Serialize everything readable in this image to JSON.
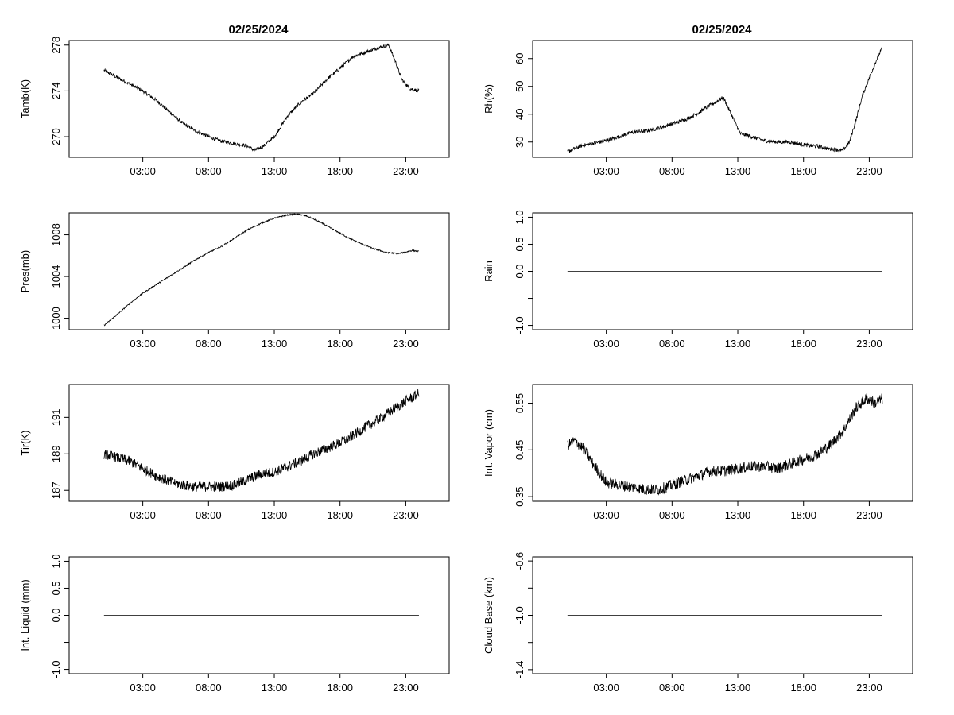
{
  "figure": {
    "left_date": "02/25/2024",
    "right_date": "02/25/2024"
  },
  "colors": {
    "line": "#000000",
    "background": "#ffffff"
  },
  "chart_data": [
    {
      "id": "tamb",
      "type": "line",
      "title": "02/25/2024",
      "xlabel": "",
      "ylabel": "Tamb(K)",
      "xticks": [
        "03:00",
        "08:00",
        "13:00",
        "18:00",
        "23:00"
      ],
      "xtick_hours": [
        3,
        8,
        13,
        18,
        23
      ],
      "xlim": [
        -2.6,
        26.3
      ],
      "ylim": [
        268.2,
        278.4
      ],
      "yticks": [
        270,
        274,
        278
      ],
      "ytick_labels": [
        "270",
        "274",
        "278"
      ],
      "noise": 0.15,
      "points": [
        [
          0.05,
          275.8
        ],
        [
          1,
          275.2
        ],
        [
          2,
          274.6
        ],
        [
          3,
          274.0
        ],
        [
          4,
          273.2
        ],
        [
          5,
          272.2
        ],
        [
          6,
          271.2
        ],
        [
          7,
          270.5
        ],
        [
          8,
          270.0
        ],
        [
          9,
          269.6
        ],
        [
          10,
          269.4
        ],
        [
          10.9,
          269.2
        ],
        [
          11.5,
          268.8
        ],
        [
          12.2,
          269.2
        ],
        [
          13,
          270.0
        ],
        [
          14,
          271.8
        ],
        [
          15,
          273.0
        ],
        [
          16,
          273.8
        ],
        [
          17,
          275.0
        ],
        [
          18,
          276.0
        ],
        [
          19,
          277.0
        ],
        [
          20,
          277.4
        ],
        [
          21,
          277.8
        ],
        [
          21.7,
          278.0
        ],
        [
          22.2,
          276.6
        ],
        [
          22.7,
          275.0
        ],
        [
          23.3,
          274.2
        ],
        [
          24,
          274.0
        ]
      ]
    },
    {
      "id": "rh",
      "type": "line",
      "title": "02/25/2024",
      "xlabel": "",
      "ylabel": "Rh(%)",
      "xticks": [
        "03:00",
        "08:00",
        "13:00",
        "18:00",
        "23:00"
      ],
      "xtick_hours": [
        3,
        8,
        13,
        18,
        23
      ],
      "xlim": [
        -2.6,
        26.3
      ],
      "ylim": [
        24.5,
        66.5
      ],
      "yticks": [
        30,
        40,
        50,
        60
      ],
      "ytick_labels": [
        "30",
        "40",
        "50",
        "60"
      ],
      "noise": 0.7,
      "points": [
        [
          0.05,
          26.5
        ],
        [
          1,
          28.5
        ],
        [
          2,
          29.5
        ],
        [
          3,
          30.5
        ],
        [
          4,
          32.0
        ],
        [
          5,
          33.5
        ],
        [
          6,
          34.0
        ],
        [
          7,
          35.0
        ],
        [
          8,
          36.5
        ],
        [
          9,
          38.0
        ],
        [
          10,
          40.5
        ],
        [
          11,
          43.5
        ],
        [
          11.9,
          46.0
        ],
        [
          12.7,
          38.0
        ],
        [
          13.2,
          33.0
        ],
        [
          14,
          32.0
        ],
        [
          15,
          30.5
        ],
        [
          16,
          30.0
        ],
        [
          17,
          30.0
        ],
        [
          18,
          29.0
        ],
        [
          19,
          28.5
        ],
        [
          20,
          27.5
        ],
        [
          21,
          27.0
        ],
        [
          21.5,
          30.0
        ],
        [
          22,
          38.0
        ],
        [
          22.5,
          47.0
        ],
        [
          23,
          53.0
        ],
        [
          23.5,
          59.0
        ],
        [
          24,
          64.0
        ]
      ]
    },
    {
      "id": "pres",
      "type": "line",
      "title": "",
      "xlabel": "",
      "ylabel": "Pres(mb)",
      "xticks": [
        "03:00",
        "08:00",
        "13:00",
        "18:00",
        "23:00"
      ],
      "xtick_hours": [
        3,
        8,
        13,
        18,
        23
      ],
      "xlim": [
        -2.6,
        26.3
      ],
      "ylim": [
        998.9,
        1010.1
      ],
      "yticks": [
        1000,
        1004,
        1008
      ],
      "ytick_labels": [
        "1000",
        "1004",
        "1008"
      ],
      "noise": 0.06,
      "points": [
        [
          0.05,
          999.3
        ],
        [
          1,
          1000.3
        ],
        [
          2,
          1001.4
        ],
        [
          3,
          1002.4
        ],
        [
          4,
          1003.2
        ],
        [
          5,
          1004.0
        ],
        [
          6,
          1004.8
        ],
        [
          7,
          1005.6
        ],
        [
          8,
          1006.3
        ],
        [
          9,
          1006.9
        ],
        [
          10,
          1007.7
        ],
        [
          11,
          1008.5
        ],
        [
          12,
          1009.1
        ],
        [
          13,
          1009.6
        ],
        [
          14,
          1009.9
        ],
        [
          14.7,
          1010.0
        ],
        [
          15.5,
          1009.8
        ],
        [
          16.5,
          1009.2
        ],
        [
          17.5,
          1008.5
        ],
        [
          18.5,
          1007.8
        ],
        [
          19.5,
          1007.2
        ],
        [
          20.5,
          1006.7
        ],
        [
          21.5,
          1006.3
        ],
        [
          22.5,
          1006.2
        ],
        [
          23.5,
          1006.5
        ],
        [
          24,
          1006.4
        ]
      ]
    },
    {
      "id": "rain",
      "type": "line",
      "title": "",
      "xlabel": "",
      "ylabel": "Rain",
      "xticks": [
        "03:00",
        "08:00",
        "13:00",
        "18:00",
        "23:00"
      ],
      "xtick_hours": [
        3,
        8,
        13,
        18,
        23
      ],
      "xlim": [
        -2.6,
        26.3
      ],
      "ylim": [
        -1.08,
        1.08
      ],
      "yticks": [
        -1.0,
        -0.5,
        0.0,
        0.5,
        1.0
      ],
      "ytick_labels": [
        "-1.0",
        "",
        "0.0",
        "0.5",
        "1.0"
      ],
      "noise": 0,
      "points": [
        [
          0.05,
          0
        ],
        [
          24,
          0
        ]
      ]
    },
    {
      "id": "tir",
      "type": "line",
      "title": "",
      "xlabel": "",
      "ylabel": "Tir(K)",
      "xticks": [
        "03:00",
        "08:00",
        "13:00",
        "18:00",
        "23:00"
      ],
      "xtick_hours": [
        3,
        8,
        13,
        18,
        23
      ],
      "xlim": [
        -2.6,
        26.3
      ],
      "ylim": [
        186.4,
        192.8
      ],
      "yticks": [
        187,
        189,
        191
      ],
      "ytick_labels": [
        "187",
        "189",
        "191"
      ],
      "noise": 0.28,
      "points": [
        [
          0.05,
          189.0
        ],
        [
          1,
          188.8
        ],
        [
          2,
          188.6
        ],
        [
          3,
          188.2
        ],
        [
          4,
          187.8
        ],
        [
          5,
          187.5
        ],
        [
          6,
          187.3
        ],
        [
          7,
          187.2
        ],
        [
          8,
          187.2
        ],
        [
          9,
          187.2
        ],
        [
          10,
          187.3
        ],
        [
          11,
          187.6
        ],
        [
          12,
          187.9
        ],
        [
          13,
          188.0
        ],
        [
          14,
          188.3
        ],
        [
          15,
          188.6
        ],
        [
          16,
          189.0
        ],
        [
          17,
          189.3
        ],
        [
          18,
          189.6
        ],
        [
          19,
          190.0
        ],
        [
          20,
          190.5
        ],
        [
          21,
          190.9
        ],
        [
          22,
          191.4
        ],
        [
          23,
          191.9
        ],
        [
          24,
          192.3
        ]
      ]
    },
    {
      "id": "vapor",
      "type": "line",
      "title": "",
      "xlabel": "",
      "ylabel": "Int. Vapor (cm)",
      "xticks": [
        "03:00",
        "08:00",
        "13:00",
        "18:00",
        "23:00"
      ],
      "xtick_hours": [
        3,
        8,
        13,
        18,
        23
      ],
      "xlim": [
        -2.6,
        26.3
      ],
      "ylim": [
        0.34,
        0.59
      ],
      "yticks": [
        0.35,
        0.45,
        0.55
      ],
      "ytick_labels": [
        "0.35",
        "0.45",
        "0.55"
      ],
      "noise": 0.012,
      "points": [
        [
          0.05,
          0.46
        ],
        [
          0.6,
          0.47
        ],
        [
          1.2,
          0.455
        ],
        [
          2,
          0.42
        ],
        [
          3,
          0.38
        ],
        [
          4,
          0.375
        ],
        [
          5,
          0.37
        ],
        [
          6,
          0.365
        ],
        [
          7,
          0.365
        ],
        [
          8,
          0.375
        ],
        [
          9,
          0.385
        ],
        [
          10,
          0.395
        ],
        [
          11,
          0.405
        ],
        [
          12,
          0.405
        ],
        [
          13,
          0.41
        ],
        [
          14,
          0.415
        ],
        [
          15,
          0.415
        ],
        [
          16,
          0.41
        ],
        [
          17,
          0.42
        ],
        [
          18,
          0.43
        ],
        [
          19,
          0.44
        ],
        [
          20,
          0.46
        ],
        [
          21,
          0.49
        ],
        [
          22,
          0.54
        ],
        [
          22.8,
          0.56
        ],
        [
          23.5,
          0.55
        ],
        [
          24,
          0.56
        ]
      ]
    },
    {
      "id": "liquid",
      "type": "line",
      "title": "",
      "xlabel": "",
      "ylabel": "Int. Liquid (mm)",
      "xticks": [
        "03:00",
        "08:00",
        "13:00",
        "18:00",
        "23:00"
      ],
      "xtick_hours": [
        3,
        8,
        13,
        18,
        23
      ],
      "xlim": [
        -2.6,
        26.3
      ],
      "ylim": [
        -1.08,
        1.08
      ],
      "yticks": [
        -1.0,
        -0.5,
        0.0,
        0.5,
        1.0
      ],
      "ytick_labels": [
        "-1.0",
        "",
        "0.0",
        "0.5",
        "1.0"
      ],
      "noise": 0,
      "points": [
        [
          0.05,
          0
        ],
        [
          24,
          0
        ]
      ]
    },
    {
      "id": "cloudbase",
      "type": "line",
      "title": "",
      "xlabel": "",
      "ylabel": "Cloud Base (km)",
      "xticks": [
        "03:00",
        "08:00",
        "13:00",
        "18:00",
        "23:00"
      ],
      "xtick_hours": [
        3,
        8,
        13,
        18,
        23
      ],
      "xlim": [
        -2.6,
        26.3
      ],
      "ylim": [
        -1.43,
        -0.57
      ],
      "yticks": [
        -1.4,
        -1.2,
        -1.0,
        -0.8,
        -0.6
      ],
      "ytick_labels": [
        "-1.4",
        "",
        "-1.0",
        "",
        "-0.6"
      ],
      "noise": 0,
      "points": [
        [
          0.05,
          -1.0
        ],
        [
          24,
          -1.0
        ]
      ]
    }
  ]
}
